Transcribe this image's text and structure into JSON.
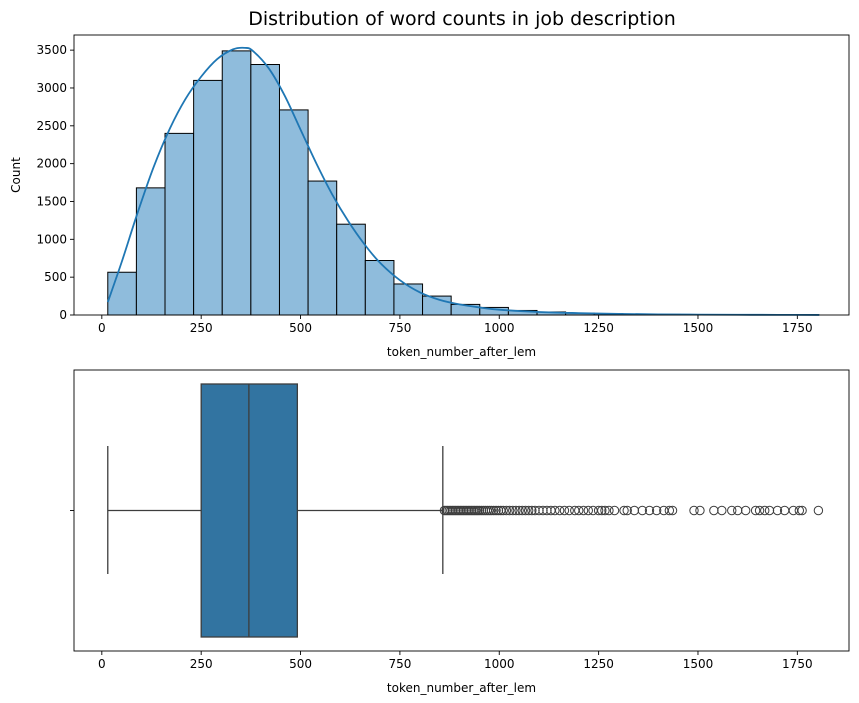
{
  "chart_data": [
    {
      "type": "histogram",
      "title": "Distribution of word counts in job description",
      "xlabel": "token_number_after_lem",
      "ylabel": "Count",
      "xlim": [
        -70,
        1880
      ],
      "ylim": [
        0,
        3700
      ],
      "xticks": [
        0,
        250,
        500,
        750,
        1000,
        1250,
        1500,
        1750
      ],
      "yticks": [
        0,
        500,
        1000,
        1500,
        2000,
        2500,
        3000,
        3500
      ],
      "bin_edges": [
        15,
        87,
        159,
        231,
        303,
        375,
        447,
        519,
        591,
        663,
        735,
        807,
        879,
        951,
        1023,
        1095,
        1167,
        1239,
        1311,
        1383,
        1455,
        1527,
        1599,
        1671,
        1743,
        1805
      ],
      "counts": [
        565,
        1680,
        2400,
        3100,
        3490,
        3310,
        2710,
        1770,
        1200,
        720,
        410,
        250,
        140,
        100,
        60,
        40,
        25,
        18,
        12,
        8,
        6,
        4,
        3,
        2,
        1
      ],
      "kde": {
        "x": [
          15,
          50,
          90,
          130,
          170,
          210,
          250,
          290,
          330,
          360,
          380,
          420,
          460,
          500,
          540,
          580,
          620,
          660,
          700,
          750,
          800,
          850,
          900,
          950,
          1000,
          1100,
          1200,
          1300,
          1400,
          1500,
          1600,
          1700,
          1805
        ],
        "y": [
          170,
          700,
          1350,
          1950,
          2450,
          2850,
          3150,
          3380,
          3510,
          3530,
          3490,
          3260,
          2900,
          2450,
          2000,
          1590,
          1240,
          940,
          690,
          460,
          300,
          200,
          140,
          100,
          70,
          40,
          25,
          15,
          8,
          5,
          3,
          2,
          1
        ]
      },
      "bar_color": "#8fbcdc",
      "line_color": "#1f77b4"
    },
    {
      "type": "boxplot",
      "xlabel": "token_number_after_lem",
      "xlim": [
        -70,
        1880
      ],
      "xticks": [
        0,
        250,
        500,
        750,
        1000,
        1250,
        1500,
        1750
      ],
      "ytick_label": "",
      "whisker_low": 15,
      "q1": 250,
      "median": 370,
      "q3": 492,
      "whisker_high": 858,
      "outliers": [
        862,
        866,
        870,
        874,
        878,
        882,
        886,
        890,
        894,
        898,
        902,
        906,
        910,
        914,
        918,
        922,
        926,
        930,
        934,
        938,
        942,
        946,
        950,
        955,
        960,
        965,
        970,
        975,
        980,
        986,
        992,
        998,
        1004,
        1010,
        1018,
        1026,
        1034,
        1042,
        1050,
        1058,
        1066,
        1074,
        1082,
        1090,
        1100,
        1110,
        1120,
        1130,
        1140,
        1152,
        1164,
        1176,
        1190,
        1200,
        1212,
        1224,
        1236,
        1250,
        1258,
        1266,
        1276,
        1290,
        1314,
        1322,
        1340,
        1360,
        1378,
        1396,
        1414,
        1428,
        1436,
        1490,
        1505,
        1540,
        1560,
        1585,
        1600,
        1620,
        1645,
        1655,
        1668,
        1680,
        1700,
        1718,
        1740,
        1755,
        1762,
        1803
      ],
      "box_color": "#3274a1",
      "outlier_color": "#3d3d3d"
    }
  ]
}
